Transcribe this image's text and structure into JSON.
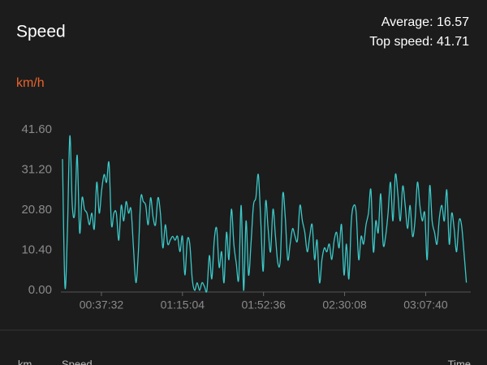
{
  "chart_data": {
    "type": "line",
    "title": "Speed",
    "stats": [
      "Average: 16.57",
      "Top speed: 41.71"
    ],
    "y_unit": "km/h",
    "color": "#3cc8c8",
    "xlim": [
      1126,
      12400
    ],
    "xticks": [
      {
        "value": 2252,
        "label": "00:37:32"
      },
      {
        "value": 4504,
        "label": "01:15:04"
      },
      {
        "value": 6756,
        "label": "01:52:36"
      },
      {
        "value": 9008,
        "label": "02:30:08"
      },
      {
        "value": 11260,
        "label": "03:07:40"
      }
    ],
    "ylim": [
      0,
      41.6
    ],
    "yticks": [
      {
        "value": 0,
        "label": "0.00"
      },
      {
        "value": 10.4,
        "label": "10.40"
      },
      {
        "value": 20.8,
        "label": "20.80"
      },
      {
        "value": 31.2,
        "label": "31.20"
      },
      {
        "value": 41.6,
        "label": "41.60"
      }
    ],
    "grid": false,
    "x": [
      1171,
      1239,
      1307,
      1375,
      1443,
      1511,
      1579,
      1647,
      1715,
      1783,
      1851,
      1919,
      1987,
      2055,
      2123,
      2191,
      2259,
      2327,
      2395,
      2463,
      2531,
      2599,
      2667,
      2735,
      2803,
      2871,
      2939,
      3007,
      3075,
      3143,
      3211,
      3279,
      3347,
      3415,
      3483,
      3551,
      3619,
      3687,
      3755,
      3823,
      3891,
      3959,
      4027,
      4095,
      4163,
      4231,
      4299,
      4367,
      4435,
      4503,
      4571,
      4639,
      4707,
      4775,
      4843,
      4911,
      4979,
      5047,
      5115,
      5183,
      5251,
      5319,
      5387,
      5455,
      5523,
      5591,
      5659,
      5727,
      5795,
      5863,
      5931,
      5999,
      6067,
      6135,
      6203,
      6271,
      6339,
      6407,
      6475,
      6543,
      6611,
      6679,
      6747,
      6815,
      6883,
      6951,
      7019,
      7087,
      7155,
      7223,
      7291,
      7359,
      7427,
      7495,
      7563,
      7631,
      7699,
      7767,
      7835,
      7903,
      7971,
      8039,
      8107,
      8175,
      8243,
      8311,
      8379,
      8447,
      8515,
      8583,
      8651,
      8719,
      8787,
      8855,
      8923,
      8991,
      9059,
      9127,
      9195,
      9263,
      9331,
      9399,
      9467,
      9535,
      9603,
      9671,
      9739,
      9807,
      9875,
      9943,
      10011,
      10079,
      10147,
      10215,
      10283,
      10351,
      10419,
      10487,
      10555,
      10623,
      10691,
      10759,
      10827,
      10895,
      10963,
      11031,
      11099,
      11167,
      11235,
      11303,
      11371,
      11439,
      11507,
      11575,
      11643,
      11711,
      11779,
      11847,
      11915,
      11983,
      12051,
      12119,
      12187,
      12255,
      12323,
      12391
    ],
    "values": [
      34,
      1,
      15,
      40,
      22,
      20,
      35,
      15,
      24,
      21,
      20,
      17,
      20,
      16,
      28,
      20,
      26,
      30,
      28,
      33,
      17,
      20,
      20,
      13,
      22,
      18,
      23,
      20,
      21,
      11,
      2,
      10,
      24,
      23,
      22,
      17,
      24,
      19,
      17,
      24,
      20,
      11,
      17,
      12,
      13,
      14,
      13,
      14,
      10,
      14,
      4,
      13,
      12,
      3,
      0,
      2,
      0,
      2,
      1,
      0,
      9,
      3,
      13,
      16,
      6,
      10,
      2,
      15,
      8,
      21,
      12,
      7,
      3,
      22,
      0,
      18,
      4,
      12,
      22,
      24,
      30,
      18,
      5,
      23,
      16,
      10,
      21,
      14,
      7,
      8,
      25,
      19,
      8,
      12,
      16,
      14,
      13,
      22,
      18,
      15,
      10,
      14,
      17,
      8,
      13,
      2,
      8,
      11,
      10,
      12,
      8,
      13,
      15,
      11,
      17,
      4,
      12,
      3,
      18,
      22,
      20,
      8,
      14,
      12,
      17,
      20,
      26,
      10,
      18,
      15,
      25,
      12,
      14,
      20,
      28,
      18,
      30,
      25,
      18,
      27,
      22,
      16,
      22,
      14,
      18,
      28,
      22,
      18,
      20,
      8,
      27,
      18,
      15,
      12,
      19,
      22,
      18,
      26,
      12,
      20,
      16,
      10,
      18,
      17,
      10,
      2
    ]
  },
  "footer_columns": [
    "km",
    "Speed",
    "Time"
  ]
}
